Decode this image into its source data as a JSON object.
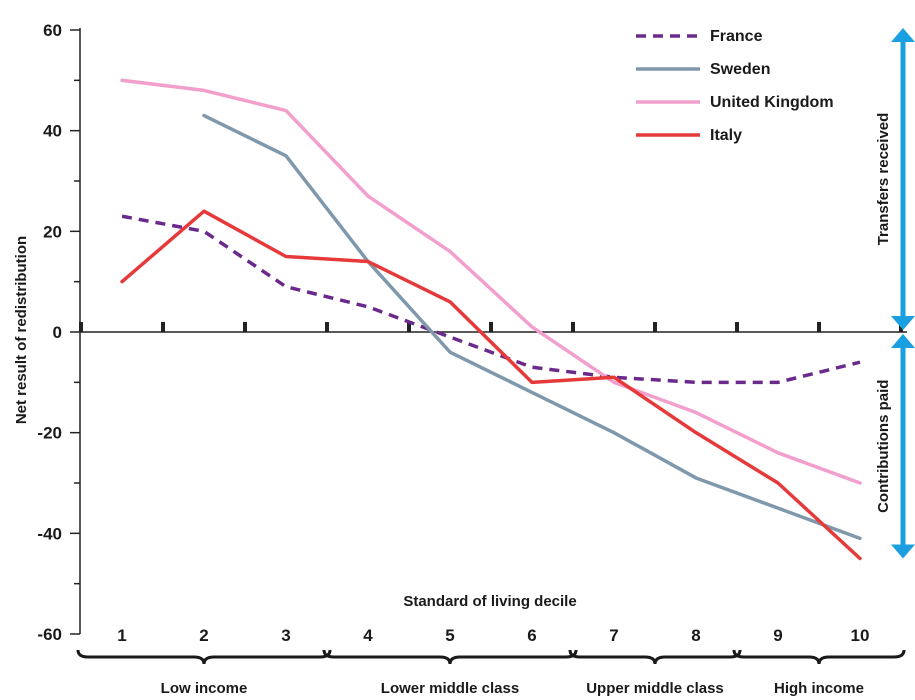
{
  "chart_data": {
    "type": "line",
    "xlabel": "Standard of living decile",
    "ylabel": "Net result of redistribution",
    "ylim": [
      -60,
      60
    ],
    "y_ticks": [
      "60",
      "40",
      "20",
      "0",
      "-20",
      "-40",
      "-60"
    ],
    "x": [
      1,
      2,
      3,
      4,
      5,
      6,
      7,
      8,
      9,
      10
    ],
    "x_tick_labels": [
      "1",
      "2",
      "3",
      "4",
      "5",
      "6",
      "7",
      "8",
      "9",
      "10"
    ],
    "grid": false,
    "legend_position": "top-right",
    "series": [
      {
        "name": "France",
        "color": "#6a2a8c",
        "dash": true,
        "values": [
          23,
          20,
          9,
          5,
          -1,
          -7,
          -9,
          -10,
          -10,
          -6
        ]
      },
      {
        "name": "Sweden",
        "color": "#7f98ab",
        "dash": false,
        "values": [
          null,
          43,
          35,
          14,
          -4,
          -12,
          -20,
          -29,
          -35,
          -41
        ]
      },
      {
        "name": "United Kingdom",
        "color": "#f29fce",
        "dash": false,
        "values": [
          50,
          48,
          44,
          27,
          16,
          1,
          -10,
          -16,
          -24,
          -30
        ]
      },
      {
        "name": "Italy",
        "color": "#e63a3a",
        "dash": false,
        "values": [
          10,
          24,
          15,
          14,
          6,
          -10,
          -9,
          -20,
          -30,
          -45
        ]
      }
    ],
    "groups": [
      {
        "label": "Low income",
        "from": 1,
        "to": 3
      },
      {
        "label": "Lower middle class",
        "from": 4,
        "to": 6
      },
      {
        "label": "Upper middle class",
        "from": 7,
        "to": 8
      },
      {
        "label": "High income",
        "from": 9,
        "to": 10
      }
    ],
    "side_annotations": {
      "upper": "Transfers received",
      "lower": "Contributions paid",
      "arrow_color": "#1a9fe0"
    }
  }
}
